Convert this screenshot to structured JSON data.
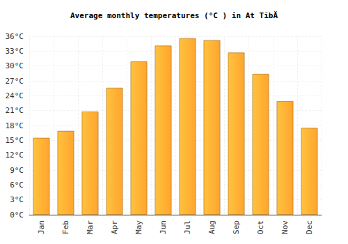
{
  "chart_data": {
    "type": "bar",
    "title": "Average monthly temperatures (°C ) in At TĩbĂ",
    "categories": [
      "Jan",
      "Feb",
      "Mar",
      "Apr",
      "May",
      "Jun",
      "Jul",
      "Aug",
      "Sep",
      "Oct",
      "Nov",
      "Dec"
    ],
    "values": [
      15.5,
      16.9,
      20.8,
      25.6,
      30.9,
      34.1,
      35.6,
      35.2,
      32.7,
      28.4,
      22.9,
      17.5
    ],
    "color": "#ffa52e",
    "ylim": [
      0,
      36
    ],
    "yticks": [
      {
        "value": 0,
        "label": "0°C"
      },
      {
        "value": 3,
        "label": "3°C"
      },
      {
        "value": 6,
        "label": "6°C"
      },
      {
        "value": 9,
        "label": "9°C"
      },
      {
        "value": 12,
        "label": "12°C"
      },
      {
        "value": 15,
        "label": "15°C"
      },
      {
        "value": 18,
        "label": "18°C"
      },
      {
        "value": 21,
        "label": "21°C"
      },
      {
        "value": 24,
        "label": "24°C"
      },
      {
        "value": 27,
        "label": "27°C"
      },
      {
        "value": 30,
        "label": "30°C"
      },
      {
        "value": 33,
        "label": "33°C"
      },
      {
        "value": 36,
        "label": "36°C"
      }
    ],
    "grid": true
  }
}
